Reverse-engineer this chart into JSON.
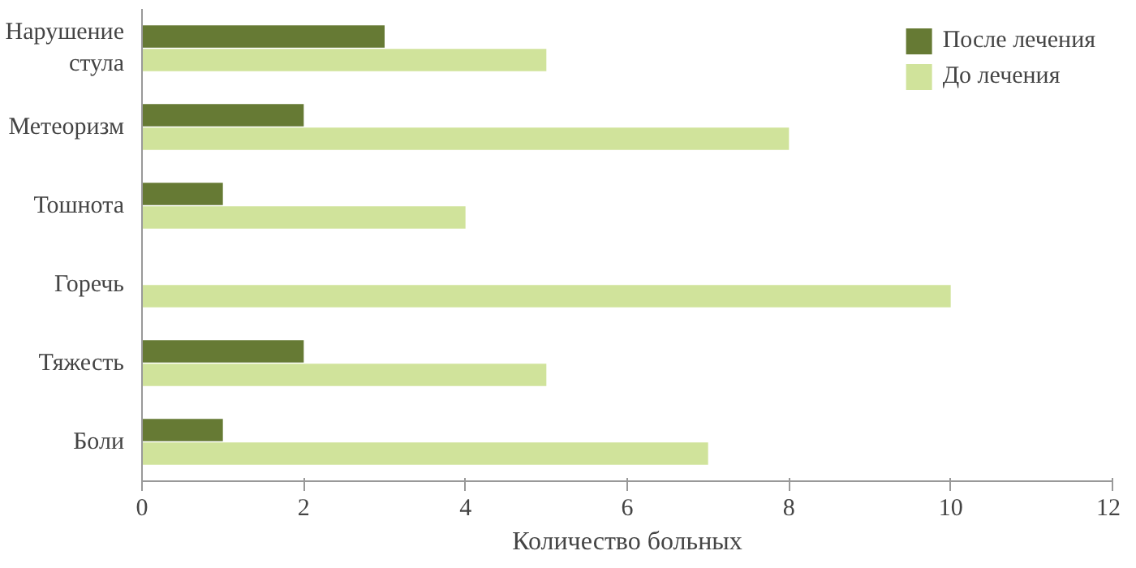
{
  "chart_data": {
    "type": "bar",
    "orientation": "horizontal",
    "categories": [
      "Нарушение\nстула",
      "Метеоризм",
      "Тошнота",
      "Горечь",
      "Тяжесть",
      "Боли"
    ],
    "series": [
      {
        "name": "После лечения",
        "color": "#667a34",
        "values": [
          3,
          2,
          1,
          0,
          2,
          1
        ]
      },
      {
        "name": "До лечения",
        "color": "#d0e39b",
        "values": [
          5,
          8,
          4,
          10,
          5,
          7
        ]
      }
    ],
    "xlabel": "Количество больных",
    "xlim": [
      0,
      12
    ],
    "xticks": [
      0,
      2,
      4,
      6,
      8,
      10,
      12
    ],
    "grid": false,
    "legend": "top right"
  }
}
